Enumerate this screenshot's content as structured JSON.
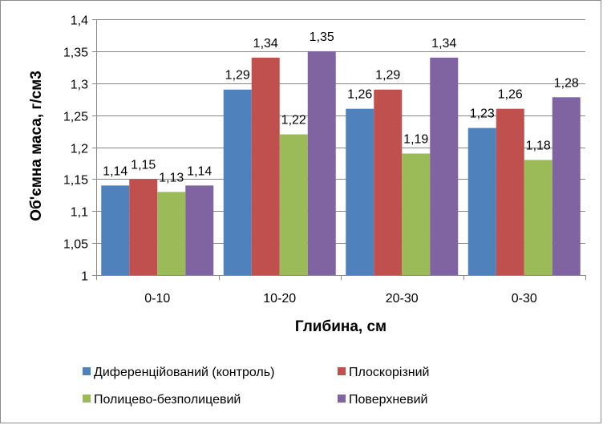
{
  "chart_data": {
    "type": "bar",
    "categories": [
      "0-10",
      "10-20",
      "20-30",
      "0-30"
    ],
    "series": [
      {
        "name": "Диференційований (контроль)",
        "values": [
          1.14,
          1.29,
          1.26,
          1.23
        ],
        "labels": [
          "1,14",
          "1,29",
          "1,26",
          "1,23"
        ],
        "color": "#4f81bd"
      },
      {
        "name": "Плоскорізний",
        "values": [
          1.15,
          1.34,
          1.29,
          1.26
        ],
        "labels": [
          "1,15",
          "1,34",
          "1,29",
          "1,26"
        ],
        "color": "#c0504d"
      },
      {
        "name": "Полицево-безполицевий",
        "values": [
          1.13,
          1.22,
          1.19,
          1.18
        ],
        "labels": [
          "1,13",
          "1,22",
          "1,19",
          "1,18"
        ],
        "color": "#9bbb59"
      },
      {
        "name": "Поверхневий",
        "values": [
          1.14,
          1.35,
          1.34,
          1.278
        ],
        "labels": [
          "1,14",
          "1,35",
          "1,34",
          "1,28"
        ],
        "color": "#8064a2"
      }
    ],
    "xlabel": "Глибина, см",
    "ylabel": "Об'ємна маса, г/см3",
    "ylim": [
      1,
      1.4
    ],
    "yticks": [
      1,
      1.05,
      1.1,
      1.15,
      1.2,
      1.25,
      1.3,
      1.35,
      1.4
    ],
    "ytick_labels": [
      "1",
      "1,05",
      "1,1",
      "1,15",
      "1,2",
      "1,25",
      "1,3",
      "1,35",
      "1,4"
    ],
    "grid": "horizontal",
    "legend_position": "bottom",
    "colors": {
      "grid": "#878787",
      "axis": "#878787"
    }
  }
}
